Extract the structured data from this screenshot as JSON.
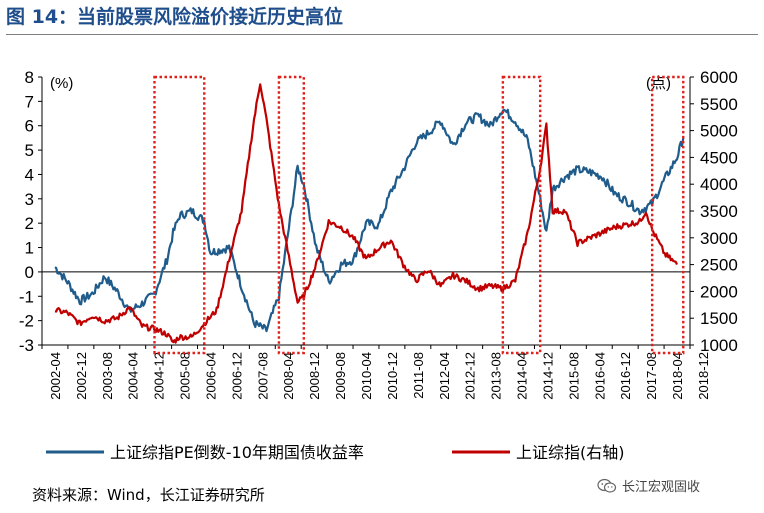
{
  "title": "图 14：当前股票风险溢价接近历史高位",
  "source": "资料来源：Wind，长江证券研究所",
  "watermark": "长江宏观固收",
  "colors": {
    "series_pe": "#1f5c8b",
    "series_index": "#c00000",
    "title": "#1f4e8c",
    "box": "#e0201b"
  },
  "chart_data": {
    "type": "line",
    "x_categories": [
      "2002-04",
      "2002-12",
      "2003-08",
      "2004-04",
      "2004-12",
      "2005-08",
      "2006-04",
      "2006-12",
      "2007-08",
      "2008-04",
      "2008-12",
      "2009-08",
      "2010-04",
      "2010-12",
      "2011-08",
      "2012-04",
      "2012-12",
      "2013-08",
      "2014-04",
      "2014-12",
      "2015-08",
      "2016-04",
      "2016-12",
      "2017-08",
      "2018-04",
      "2018-12"
    ],
    "left_axis": {
      "unit": "(%)",
      "min": -3,
      "max": 8,
      "ticks": [
        "-3",
        "-2",
        "-1",
        "0",
        "1",
        "2",
        "3",
        "4",
        "5",
        "6",
        "7",
        "8"
      ]
    },
    "right_axis": {
      "unit": "(点)",
      "min": 1000,
      "max": 6000,
      "ticks": [
        "1000",
        "1500",
        "2000",
        "2500",
        "3000",
        "3500",
        "4000",
        "4500",
        "5000",
        "5500",
        "6000"
      ]
    },
    "series": [
      {
        "name": "上证综指PE倒数-10年期国债收益率",
        "axis": "left",
        "points": [
          [
            "2002-04",
            0.2
          ],
          [
            "2002-08",
            -0.4
          ],
          [
            "2002-12",
            -1.2
          ],
          [
            "2003-04",
            -0.9
          ],
          [
            "2003-08",
            -0.2
          ],
          [
            "2003-12",
            -0.8
          ],
          [
            "2004-04",
            -1.6
          ],
          [
            "2004-08",
            -1.3
          ],
          [
            "2004-12",
            -0.9
          ],
          [
            "2005-04",
            0.5
          ],
          [
            "2005-06",
            1.6
          ],
          [
            "2005-08",
            2.3
          ],
          [
            "2005-12",
            2.5
          ],
          [
            "2006-04",
            2.1
          ],
          [
            "2006-06",
            0.8
          ],
          [
            "2006-12",
            1.0
          ],
          [
            "2007-04",
            -0.6
          ],
          [
            "2007-08",
            -2.1
          ],
          [
            "2007-12",
            -2.4
          ],
          [
            "2008-04",
            -1.0
          ],
          [
            "2008-08",
            2.5
          ],
          [
            "2008-10",
            4.3
          ],
          [
            "2008-12",
            3.6
          ],
          [
            "2009-04",
            1.0
          ],
          [
            "2009-08",
            -0.4
          ],
          [
            "2009-12",
            0.3
          ],
          [
            "2010-04",
            0.5
          ],
          [
            "2010-08",
            2.0
          ],
          [
            "2010-12",
            1.9
          ],
          [
            "2011-04",
            3.3
          ],
          [
            "2011-08",
            4.2
          ],
          [
            "2011-12",
            5.3
          ],
          [
            "2012-04",
            5.7
          ],
          [
            "2012-08",
            6.2
          ],
          [
            "2012-12",
            5.2
          ],
          [
            "2013-04",
            6.1
          ],
          [
            "2013-08",
            6.4
          ],
          [
            "2013-12",
            6.0
          ],
          [
            "2014-04",
            6.7
          ],
          [
            "2014-08",
            6.2
          ],
          [
            "2014-12",
            5.4
          ],
          [
            "2015-04",
            3.0
          ],
          [
            "2015-06",
            1.6
          ],
          [
            "2015-08",
            3.4
          ],
          [
            "2015-12",
            3.9
          ],
          [
            "2016-04",
            4.2
          ],
          [
            "2016-08",
            4.1
          ],
          [
            "2016-12",
            3.9
          ],
          [
            "2017-04",
            3.2
          ],
          [
            "2017-08",
            2.9
          ],
          [
            "2017-12",
            2.5
          ],
          [
            "2018-04",
            2.8
          ],
          [
            "2018-08",
            3.8
          ],
          [
            "2018-12",
            4.7
          ],
          [
            "2019-02",
            5.5
          ]
        ]
      },
      {
        "name": "上证综指(右轴)",
        "axis": "right",
        "points": [
          [
            "2002-04",
            1650
          ],
          [
            "2002-08",
            1600
          ],
          [
            "2002-12",
            1400
          ],
          [
            "2003-04",
            1550
          ],
          [
            "2003-08",
            1450
          ],
          [
            "2003-12",
            1500
          ],
          [
            "2004-04",
            1700
          ],
          [
            "2004-08",
            1350
          ],
          [
            "2004-12",
            1300
          ],
          [
            "2005-04",
            1200
          ],
          [
            "2005-06",
            1050
          ],
          [
            "2005-08",
            1150
          ],
          [
            "2005-12",
            1150
          ],
          [
            "2006-04",
            1400
          ],
          [
            "2006-08",
            1650
          ],
          [
            "2006-12",
            2600
          ],
          [
            "2007-04",
            3500
          ],
          [
            "2007-08",
            5200
          ],
          [
            "2007-10",
            5900
          ],
          [
            "2007-12",
            5200
          ],
          [
            "2008-04",
            3600
          ],
          [
            "2008-08",
            2400
          ],
          [
            "2008-10",
            1800
          ],
          [
            "2008-12",
            1900
          ],
          [
            "2009-04",
            2500
          ],
          [
            "2009-08",
            3300
          ],
          [
            "2009-12",
            3200
          ],
          [
            "2010-04",
            3000
          ],
          [
            "2010-08",
            2600
          ],
          [
            "2010-12",
            2800
          ],
          [
            "2011-04",
            2950
          ],
          [
            "2011-08",
            2500
          ],
          [
            "2011-12",
            2200
          ],
          [
            "2012-04",
            2400
          ],
          [
            "2012-08",
            2100
          ],
          [
            "2012-12",
            2300
          ],
          [
            "2013-04",
            2200
          ],
          [
            "2013-08",
            2050
          ],
          [
            "2013-12",
            2100
          ],
          [
            "2014-04",
            2050
          ],
          [
            "2014-08",
            2200
          ],
          [
            "2014-12",
            3100
          ],
          [
            "2015-04",
            4300
          ],
          [
            "2015-06",
            5100
          ],
          [
            "2015-08",
            3500
          ],
          [
            "2015-12",
            3500
          ],
          [
            "2016-04",
            2900
          ],
          [
            "2016-08",
            3000
          ],
          [
            "2016-12",
            3100
          ],
          [
            "2017-04",
            3200
          ],
          [
            "2017-08",
            3250
          ],
          [
            "2017-12",
            3300
          ],
          [
            "2018-02",
            3500
          ],
          [
            "2018-04",
            3150
          ],
          [
            "2018-08",
            2700
          ],
          [
            "2018-12",
            2500
          ]
        ]
      }
    ],
    "highlight_ranges": [
      [
        "2004-12",
        "2006-04"
      ],
      [
        "2008-04",
        "2008-12"
      ],
      [
        "2014-04",
        "2015-04"
      ],
      [
        "2018-04",
        "2019-02"
      ]
    ]
  }
}
